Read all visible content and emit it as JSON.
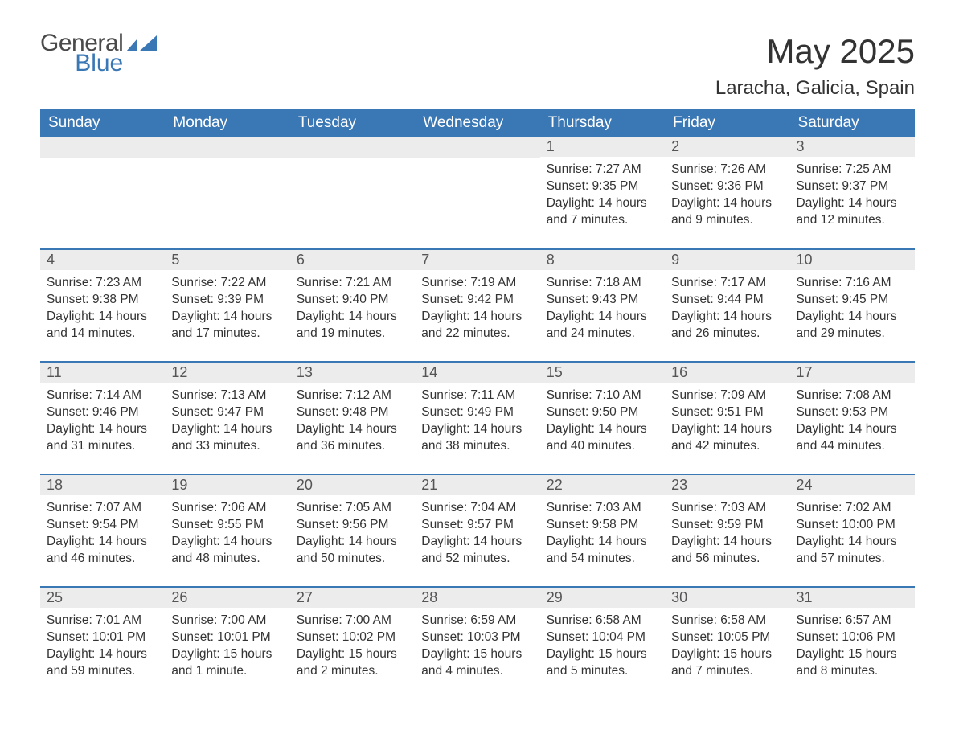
{
  "brand": {
    "word1": "General",
    "word2": "Blue",
    "icon_color": "#3a77b5"
  },
  "title": {
    "month": "May 2025",
    "location": "Laracha, Galicia, Spain"
  },
  "colors": {
    "header_bg": "#3a77b5",
    "header_text": "#ffffff",
    "daynum_bg": "#ececec",
    "daynum_text": "#555555",
    "body_text": "#333333",
    "row_border": "#3a77b5",
    "page_bg": "#ffffff"
  },
  "layout": {
    "type": "table",
    "columns": 7,
    "rows": 5,
    "first_day_column_index": 4,
    "font_family": "Arial",
    "header_fontsize": 19,
    "daynum_fontsize": 18,
    "content_fontsize": 15.5,
    "title_fontsize": 42,
    "location_fontsize": 24
  },
  "weekdays": [
    "Sunday",
    "Monday",
    "Tuesday",
    "Wednesday",
    "Thursday",
    "Friday",
    "Saturday"
  ],
  "labels": {
    "sunrise": "Sunrise:",
    "sunset": "Sunset:",
    "daylight": "Daylight:"
  },
  "days": [
    {
      "n": "1",
      "sunrise": "7:27 AM",
      "sunset": "9:35 PM",
      "daylight": "14 hours and 7 minutes."
    },
    {
      "n": "2",
      "sunrise": "7:26 AM",
      "sunset": "9:36 PM",
      "daylight": "14 hours and 9 minutes."
    },
    {
      "n": "3",
      "sunrise": "7:25 AM",
      "sunset": "9:37 PM",
      "daylight": "14 hours and 12 minutes."
    },
    {
      "n": "4",
      "sunrise": "7:23 AM",
      "sunset": "9:38 PM",
      "daylight": "14 hours and 14 minutes."
    },
    {
      "n": "5",
      "sunrise": "7:22 AM",
      "sunset": "9:39 PM",
      "daylight": "14 hours and 17 minutes."
    },
    {
      "n": "6",
      "sunrise": "7:21 AM",
      "sunset": "9:40 PM",
      "daylight": "14 hours and 19 minutes."
    },
    {
      "n": "7",
      "sunrise": "7:19 AM",
      "sunset": "9:42 PM",
      "daylight": "14 hours and 22 minutes."
    },
    {
      "n": "8",
      "sunrise": "7:18 AM",
      "sunset": "9:43 PM",
      "daylight": "14 hours and 24 minutes."
    },
    {
      "n": "9",
      "sunrise": "7:17 AM",
      "sunset": "9:44 PM",
      "daylight": "14 hours and 26 minutes."
    },
    {
      "n": "10",
      "sunrise": "7:16 AM",
      "sunset": "9:45 PM",
      "daylight": "14 hours and 29 minutes."
    },
    {
      "n": "11",
      "sunrise": "7:14 AM",
      "sunset": "9:46 PM",
      "daylight": "14 hours and 31 minutes."
    },
    {
      "n": "12",
      "sunrise": "7:13 AM",
      "sunset": "9:47 PM",
      "daylight": "14 hours and 33 minutes."
    },
    {
      "n": "13",
      "sunrise": "7:12 AM",
      "sunset": "9:48 PM",
      "daylight": "14 hours and 36 minutes."
    },
    {
      "n": "14",
      "sunrise": "7:11 AM",
      "sunset": "9:49 PM",
      "daylight": "14 hours and 38 minutes."
    },
    {
      "n": "15",
      "sunrise": "7:10 AM",
      "sunset": "9:50 PM",
      "daylight": "14 hours and 40 minutes."
    },
    {
      "n": "16",
      "sunrise": "7:09 AM",
      "sunset": "9:51 PM",
      "daylight": "14 hours and 42 minutes."
    },
    {
      "n": "17",
      "sunrise": "7:08 AM",
      "sunset": "9:53 PM",
      "daylight": "14 hours and 44 minutes."
    },
    {
      "n": "18",
      "sunrise": "7:07 AM",
      "sunset": "9:54 PM",
      "daylight": "14 hours and 46 minutes."
    },
    {
      "n": "19",
      "sunrise": "7:06 AM",
      "sunset": "9:55 PM",
      "daylight": "14 hours and 48 minutes."
    },
    {
      "n": "20",
      "sunrise": "7:05 AM",
      "sunset": "9:56 PM",
      "daylight": "14 hours and 50 minutes."
    },
    {
      "n": "21",
      "sunrise": "7:04 AM",
      "sunset": "9:57 PM",
      "daylight": "14 hours and 52 minutes."
    },
    {
      "n": "22",
      "sunrise": "7:03 AM",
      "sunset": "9:58 PM",
      "daylight": "14 hours and 54 minutes."
    },
    {
      "n": "23",
      "sunrise": "7:03 AM",
      "sunset": "9:59 PM",
      "daylight": "14 hours and 56 minutes."
    },
    {
      "n": "24",
      "sunrise": "7:02 AM",
      "sunset": "10:00 PM",
      "daylight": "14 hours and 57 minutes."
    },
    {
      "n": "25",
      "sunrise": "7:01 AM",
      "sunset": "10:01 PM",
      "daylight": "14 hours and 59 minutes."
    },
    {
      "n": "26",
      "sunrise": "7:00 AM",
      "sunset": "10:01 PM",
      "daylight": "15 hours and 1 minute."
    },
    {
      "n": "27",
      "sunrise": "7:00 AM",
      "sunset": "10:02 PM",
      "daylight": "15 hours and 2 minutes."
    },
    {
      "n": "28",
      "sunrise": "6:59 AM",
      "sunset": "10:03 PM",
      "daylight": "15 hours and 4 minutes."
    },
    {
      "n": "29",
      "sunrise": "6:58 AM",
      "sunset": "10:04 PM",
      "daylight": "15 hours and 5 minutes."
    },
    {
      "n": "30",
      "sunrise": "6:58 AM",
      "sunset": "10:05 PM",
      "daylight": "15 hours and 7 minutes."
    },
    {
      "n": "31",
      "sunrise": "6:57 AM",
      "sunset": "10:06 PM",
      "daylight": "15 hours and 8 minutes."
    }
  ]
}
